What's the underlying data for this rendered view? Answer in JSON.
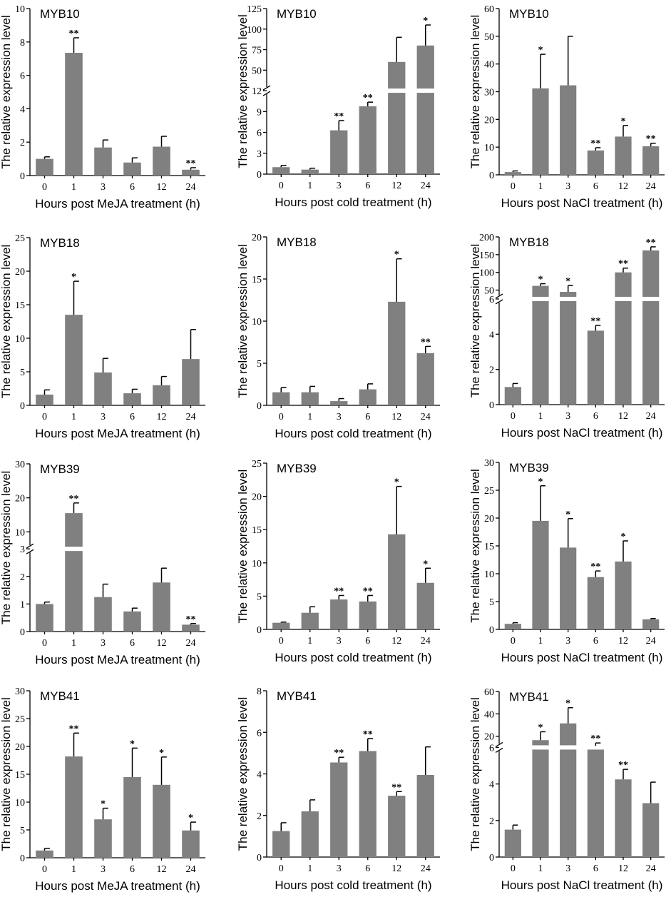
{
  "figure": {
    "y_axis_label": "The relative expression level"
  },
  "colors": {
    "bar": "#808080",
    "axis": "#000000",
    "background": "#ffffff"
  },
  "chart_data": [
    {
      "type": "bar",
      "title": "MYB10",
      "xlabel": "Hours post MeJA treatment (h)",
      "ylabel": "The relative expression level",
      "categories": [
        "0",
        "1",
        "3",
        "6",
        "12",
        "24"
      ],
      "values": [
        1.0,
        7.35,
        1.68,
        0.78,
        1.73,
        0.35
      ],
      "errors": [
        0.12,
        0.9,
        0.45,
        0.28,
        0.62,
        0.12
      ],
      "significance": [
        "",
        "**",
        "",
        "",
        "",
        "**"
      ],
      "ylim": [
        0,
        10
      ],
      "yticks": [
        0,
        2,
        4,
        6,
        8,
        10
      ]
    },
    {
      "type": "bar",
      "title": "MYB10",
      "xlabel": "Hours post cold treatment (h)",
      "ylabel": "The relative expression level",
      "categories": [
        "0",
        "1",
        "3",
        "6",
        "12",
        "24"
      ],
      "values": [
        1.0,
        0.65,
        6.3,
        9.75,
        60,
        80
      ],
      "errors": [
        0.25,
        0.2,
        1.4,
        0.6,
        30,
        25
      ],
      "significance": [
        "",
        "",
        "**",
        "**",
        "",
        "*"
      ],
      "ylim": [
        0,
        125
      ],
      "yticks": [
        0,
        3,
        6,
        9,
        12,
        50,
        75,
        100,
        125
      ],
      "axis_break": {
        "lower_max": 12,
        "upper_min": 25,
        "upper_max": 125
      }
    },
    {
      "type": "bar",
      "title": "MYB10",
      "xlabel": "Hours post NaCl treatment (h)",
      "ylabel": "The relative expression level",
      "categories": [
        "0",
        "1",
        "3",
        "6",
        "12",
        "24"
      ],
      "values": [
        1.0,
        31.2,
        32.3,
        8.8,
        13.8,
        10.3
      ],
      "errors": [
        0.4,
        12.3,
        17.7,
        1.0,
        4.0,
        1.1
      ],
      "significance": [
        "",
        "*",
        "",
        "**",
        "*",
        "**"
      ],
      "ylim": [
        0,
        60
      ],
      "yticks": [
        0,
        10,
        20,
        30,
        40,
        50,
        60
      ]
    },
    {
      "type": "bar",
      "title": "MYB18",
      "xlabel": "Hours post MeJA treatment (h)",
      "ylabel": "The relative expression level",
      "categories": [
        "0",
        "1",
        "3",
        "6",
        "12",
        "24"
      ],
      "values": [
        1.6,
        13.5,
        4.9,
        1.8,
        3.0,
        6.9
      ],
      "errors": [
        0.7,
        5.0,
        2.1,
        0.6,
        1.3,
        4.4
      ],
      "significance": [
        "",
        "*",
        "",
        "",
        "",
        ""
      ],
      "ylim": [
        0,
        25
      ],
      "yticks": [
        0,
        5,
        10,
        15,
        20,
        25
      ]
    },
    {
      "type": "bar",
      "title": "MYB18",
      "xlabel": "Hours post cold treatment (h)",
      "ylabel": "The relative expression level",
      "categories": [
        "0",
        "1",
        "3",
        "6",
        "12",
        "24"
      ],
      "values": [
        1.55,
        1.55,
        0.5,
        1.9,
        12.3,
        6.2
      ],
      "errors": [
        0.55,
        0.7,
        0.3,
        0.65,
        5.1,
        0.8
      ],
      "significance": [
        "",
        "",
        "",
        "",
        "*",
        "**"
      ],
      "ylim": [
        0,
        20
      ],
      "yticks": [
        0,
        5,
        10,
        15,
        20
      ]
    },
    {
      "type": "bar",
      "title": "MYB18",
      "xlabel": "Hours post NaCl treatment (h)",
      "ylabel": "The relative expression level",
      "categories": [
        "0",
        "1",
        "3",
        "6",
        "12",
        "24"
      ],
      "values": [
        1.0,
        62,
        45,
        4.2,
        100,
        162
      ],
      "errors": [
        0.2,
        6,
        18,
        0.3,
        12,
        10
      ],
      "significance": [
        "",
        "*",
        "*",
        "**",
        "**",
        "**"
      ],
      "ylim": [
        0,
        200
      ],
      "yticks": [
        0,
        2,
        4,
        6,
        50,
        100,
        150,
        200
      ],
      "axis_break": {
        "lower_max": 6,
        "upper_min": 25,
        "upper_max": 200
      }
    },
    {
      "type": "bar",
      "title": "MYB39",
      "xlabel": "Hours post MeJA treatment (h)",
      "ylabel": "The relative expression level",
      "categories": [
        "0",
        "1",
        "3",
        "6",
        "12",
        "24"
      ],
      "values": [
        1.0,
        15.5,
        1.25,
        0.73,
        1.78,
        0.25
      ],
      "errors": [
        0.07,
        3.0,
        0.47,
        0.12,
        0.52,
        0.04
      ],
      "significance": [
        "",
        "**",
        "",
        "",
        "",
        "**"
      ],
      "ylim": [
        0,
        30
      ],
      "yticks": [
        0,
        1,
        2,
        3,
        10,
        20,
        30
      ],
      "axis_break": {
        "lower_max": 3,
        "upper_min": 5,
        "upper_max": 30
      }
    },
    {
      "type": "bar",
      "title": "MYB39",
      "xlabel": "Hours post cold treatment (h)",
      "ylabel": "The relative expression level",
      "categories": [
        "0",
        "1",
        "3",
        "6",
        "12",
        "24"
      ],
      "values": [
        1.0,
        2.5,
        4.5,
        4.2,
        14.3,
        7.0
      ],
      "errors": [
        0.1,
        0.9,
        0.6,
        0.9,
        7.2,
        2.2
      ],
      "significance": [
        "",
        "",
        "**",
        "**",
        "*",
        "*"
      ],
      "ylim": [
        0,
        25
      ],
      "yticks": [
        0,
        5,
        10,
        15,
        20,
        25
      ]
    },
    {
      "type": "bar",
      "title": "MYB39",
      "xlabel": "Hours post NaCl treatment (h)",
      "ylabel": "The relative expression level",
      "categories": [
        "0",
        "1",
        "3",
        "6",
        "12",
        "24"
      ],
      "values": [
        1.0,
        19.5,
        14.7,
        9.4,
        12.2,
        1.8
      ],
      "errors": [
        0.2,
        6.3,
        5.2,
        1.1,
        3.7,
        0.15
      ],
      "significance": [
        "",
        "*",
        "*",
        "**",
        "*",
        ""
      ],
      "ylim": [
        0,
        30
      ],
      "yticks": [
        0,
        5,
        10,
        15,
        20,
        25,
        30
      ]
    },
    {
      "type": "bar",
      "title": "MYB41",
      "xlabel": "Hours post MeJA treatment (h)",
      "ylabel": "The relative expression level",
      "categories": [
        "0",
        "1",
        "3",
        "6",
        "12",
        "24"
      ],
      "values": [
        1.3,
        18.2,
        6.9,
        14.5,
        13.1,
        4.9
      ],
      "errors": [
        0.4,
        4.2,
        2.0,
        5.2,
        5.0,
        1.5
      ],
      "significance": [
        "",
        "**",
        "*",
        "*",
        "*",
        "*"
      ],
      "ylim": [
        0,
        30
      ],
      "yticks": [
        0,
        5,
        10,
        15,
        20,
        25,
        30
      ]
    },
    {
      "type": "bar",
      "title": "MYB41",
      "xlabel": "Hours post cold treatment (h)",
      "ylabel": "The relative expression level",
      "categories": [
        "0",
        "1",
        "3",
        "6",
        "12",
        "24"
      ],
      "values": [
        1.25,
        2.2,
        4.55,
        5.1,
        2.95,
        3.95
      ],
      "errors": [
        0.4,
        0.55,
        0.25,
        0.6,
        0.2,
        1.35
      ],
      "significance": [
        "",
        "",
        "**",
        "**",
        "**",
        ""
      ],
      "ylim": [
        0,
        8
      ],
      "yticks": [
        0,
        2,
        4,
        6,
        8
      ]
    },
    {
      "type": "bar",
      "title": "MYB41",
      "xlabel": "Hours post NaCl treatment (h)",
      "ylabel": "The relative expression level",
      "categories": [
        "0",
        "1",
        "3",
        "6",
        "12",
        "24"
      ],
      "values": [
        1.5,
        16.5,
        31.5,
        11.5,
        4.25,
        2.95
      ],
      "errors": [
        0.25,
        7.5,
        14,
        2.5,
        0.55,
        1.15
      ],
      "significance": [
        "",
        "*",
        "*",
        "**",
        "**",
        ""
      ],
      "ylim": [
        0,
        60
      ],
      "yticks": [
        0,
        2,
        4,
        6,
        20,
        40,
        60
      ],
      "axis_break": {
        "lower_max": 6,
        "upper_min": 10,
        "upper_max": 60
      }
    }
  ]
}
